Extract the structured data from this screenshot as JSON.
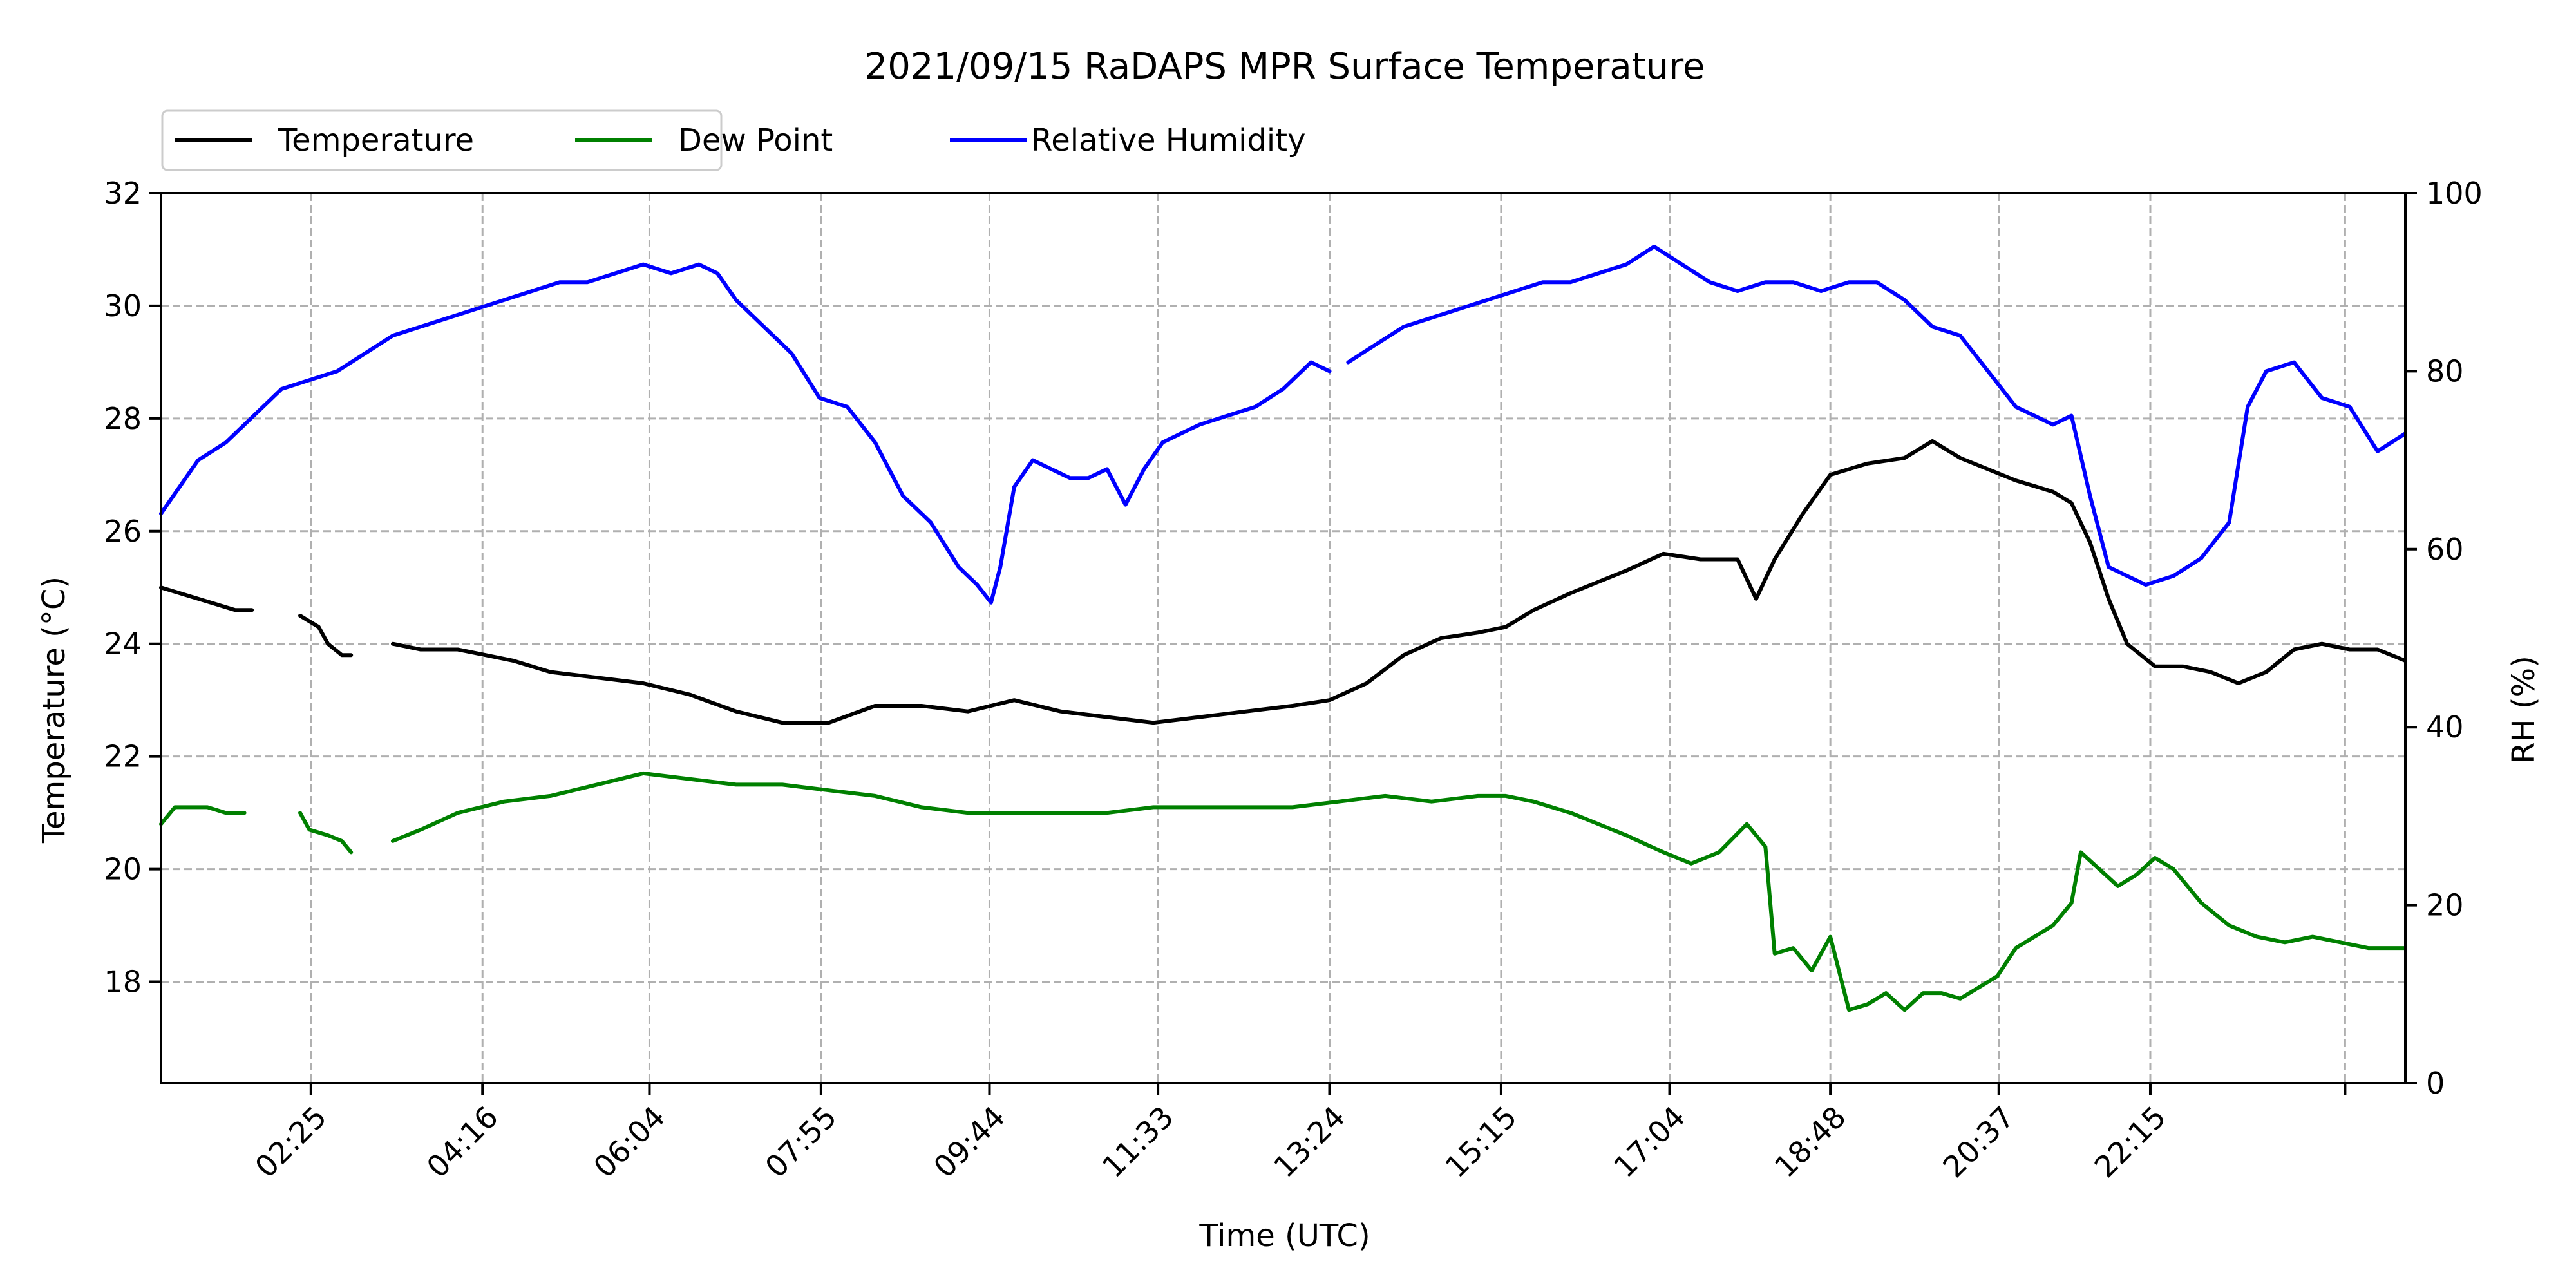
{
  "chart_data": {
    "type": "line",
    "title": "2021/09/15 RaDAPS MPR Surface Temperature",
    "xlabel": "Time (UTC)",
    "ylabel": "Temperature ($^\\circ$C)",
    "ylabel_display": "Temperature (°C)",
    "y2label": "RH (%)",
    "ylim": [
      16.2,
      32
    ],
    "y2lim": [
      0,
      100
    ],
    "xlim_hours": [
      0.8,
      25.0
    ],
    "x_ticks": [
      {
        "hour": 2.4167,
        "label": "02:25"
      },
      {
        "hour": 4.2667,
        "label": "04:16"
      },
      {
        "hour": 6.0667,
        "label": "06:04"
      },
      {
        "hour": 7.9167,
        "label": "07:55"
      },
      {
        "hour": 9.7333,
        "label": "09:44"
      },
      {
        "hour": 11.55,
        "label": "11:33"
      },
      {
        "hour": 13.4,
        "label": "13:24"
      },
      {
        "hour": 15.25,
        "label": "15:15"
      },
      {
        "hour": 17.0667,
        "label": "17:04"
      },
      {
        "hour": 18.8,
        "label": "18:48"
      },
      {
        "hour": 20.6167,
        "label": "20:37"
      },
      {
        "hour": 22.25,
        "label": "22:15"
      },
      {
        "hour": 24.35,
        "label": ""
      }
    ],
    "y_ticks": [
      18,
      20,
      22,
      24,
      26,
      28,
      30,
      32
    ],
    "y2_ticks": [
      0,
      20,
      40,
      60,
      80,
      100
    ],
    "grid": true,
    "legend_position": "top-left",
    "series": [
      {
        "name": "Temperature",
        "axis": "left",
        "color": "#000000",
        "segments": [
          {
            "x": [
              0.8,
              1.0,
              1.2,
              1.4,
              1.6,
              1.78
            ],
            "y": [
              25.0,
              24.9,
              24.8,
              24.7,
              24.6,
              24.6
            ]
          },
          {
            "x": [
              2.3,
              2.5,
              2.6,
              2.75,
              2.85
            ],
            "y": [
              24.5,
              24.3,
              24.0,
              23.8,
              23.8
            ]
          },
          {
            "x": [
              3.3,
              3.6,
              4.0,
              4.3,
              4.6,
              5.0,
              5.5,
              6.0,
              6.5,
              7.0,
              7.5,
              8.0,
              8.5,
              9.0,
              9.5,
              10.0,
              10.5,
              11.0,
              11.5,
              12.0,
              12.5,
              13.0,
              13.4,
              13.8,
              14.2,
              14.6,
              15.0,
              15.3,
              15.6,
              16.0,
              16.3,
              16.6,
              17.0,
              17.4,
              17.8,
              18.0,
              18.2,
              18.5,
              18.8,
              19.2,
              19.6,
              19.9,
              20.2,
              20.5,
              20.8,
              21.0,
              21.2,
              21.4,
              21.6,
              21.8,
              22.0,
              22.3,
              22.6,
              22.9,
              23.2,
              23.5,
              23.8,
              24.1,
              24.4,
              24.7,
              25.0
            ],
            "y": [
              24.0,
              23.9,
              23.9,
              23.8,
              23.7,
              23.5,
              23.4,
              23.3,
              23.1,
              22.8,
              22.6,
              22.6,
              22.9,
              22.9,
              22.8,
              23.0,
              22.8,
              22.7,
              22.6,
              22.7,
              22.8,
              22.9,
              23.0,
              23.3,
              23.8,
              24.1,
              24.2,
              24.3,
              24.6,
              24.9,
              25.1,
              25.3,
              25.6,
              25.5,
              25.5,
              24.8,
              25.5,
              26.3,
              27.0,
              27.2,
              27.3,
              27.6,
              27.3,
              27.1,
              26.9,
              26.8,
              26.7,
              26.5,
              25.8,
              24.8,
              24.0,
              23.6,
              23.6,
              23.5,
              23.3,
              23.5,
              23.9,
              24.0,
              23.9,
              23.9,
              23.7
            ]
          }
        ]
      },
      {
        "name": "Dew Point",
        "axis": "left",
        "color": "#008000",
        "segments": [
          {
            "x": [
              0.8,
              0.95,
              1.1,
              1.3,
              1.5,
              1.7
            ],
            "y": [
              20.8,
              21.1,
              21.1,
              21.1,
              21.0,
              21.0
            ]
          },
          {
            "x": [
              2.3,
              2.4,
              2.6,
              2.75,
              2.85
            ],
            "y": [
              21.0,
              20.7,
              20.6,
              20.5,
              20.3
            ]
          },
          {
            "x": [
              3.3,
              3.6,
              4.0,
              4.5,
              5.0,
              5.5,
              6.0,
              6.5,
              7.0,
              7.5,
              8.0,
              8.5,
              9.0,
              9.5,
              10.0,
              10.5,
              11.0,
              11.5,
              12.0,
              12.5,
              13.0,
              13.5,
              14.0,
              14.5,
              15.0,
              15.3,
              15.6,
              16.0,
              16.3,
              16.6,
              17.0,
              17.3,
              17.6,
              17.9,
              18.1,
              18.2,
              18.4,
              18.6,
              18.8,
              19.0,
              19.2,
              19.4,
              19.6,
              19.8,
              20.0,
              20.2,
              20.4,
              20.6,
              20.8,
              21.0,
              21.2,
              21.4,
              21.5,
              21.7,
              21.9,
              22.1,
              22.3,
              22.5,
              22.8,
              23.1,
              23.4,
              23.7,
              24.0,
              24.3,
              24.6,
              25.0
            ],
            "y": [
              20.5,
              20.7,
              21.0,
              21.2,
              21.3,
              21.5,
              21.7,
              21.6,
              21.5,
              21.5,
              21.4,
              21.3,
              21.1,
              21.0,
              21.0,
              21.0,
              21.0,
              21.1,
              21.1,
              21.1,
              21.1,
              21.2,
              21.3,
              21.2,
              21.3,
              21.3,
              21.2,
              21.0,
              20.8,
              20.6,
              20.3,
              20.1,
              20.3,
              20.8,
              20.4,
              18.5,
              18.6,
              18.2,
              18.8,
              17.5,
              17.6,
              17.8,
              17.5,
              17.8,
              17.8,
              17.7,
              17.9,
              18.1,
              18.6,
              18.8,
              19.0,
              19.4,
              20.3,
              20.0,
              19.7,
              19.9,
              20.2,
              20.0,
              19.4,
              19.0,
              18.8,
              18.7,
              18.8,
              18.7,
              18.6,
              18.6
            ]
          }
        ]
      },
      {
        "name": "Relative Humidity",
        "axis": "right",
        "color": "#0000ff",
        "segments": [
          {
            "x": [
              0.8,
              1.0,
              1.2,
              1.5,
              1.8,
              2.1,
              2.4,
              2.7,
              3.0,
              3.3,
              3.6,
              3.9,
              4.2,
              4.5,
              4.8,
              5.1,
              5.4,
              5.7,
              6.0,
              6.3,
              6.6,
              6.8,
              7.0,
              7.3,
              7.6,
              7.9,
              8.2,
              8.5,
              8.8,
              9.1,
              9.4,
              9.6,
              9.75,
              9.85,
              10.0,
              10.2,
              10.4,
              10.6,
              10.8,
              11.0,
              11.2,
              11.4,
              11.6,
              11.8,
              12.0,
              12.3,
              12.6,
              12.9,
              13.2,
              13.4
            ],
            "y": [
              64,
              67,
              70,
              72,
              75,
              78,
              79,
              80,
              82,
              84,
              85,
              86,
              87,
              88,
              89,
              90,
              90,
              91,
              92,
              91,
              92,
              91,
              88,
              85,
              82,
              77,
              76,
              72,
              66,
              63,
              58,
              56,
              54,
              58,
              67,
              70,
              69,
              68,
              68,
              69,
              65,
              69,
              72,
              73,
              74,
              75,
              76,
              78,
              81,
              80
            ]
          },
          {
            "x": [
              13.6,
              13.9,
              14.2,
              14.5,
              14.8,
              15.1,
              15.4,
              15.7,
              16.0,
              16.3,
              16.6,
              16.9,
              17.2,
              17.5,
              17.8,
              18.1,
              18.4,
              18.7,
              19.0,
              19.3,
              19.6,
              19.9,
              20.2,
              20.5,
              20.8,
              21.0,
              21.2,
              21.4,
              21.6,
              21.8,
              22.0,
              22.2,
              22.5,
              22.8,
              23.1,
              23.3,
              23.5,
              23.8,
              24.1,
              24.4,
              24.7,
              25.0
            ],
            "y": [
              81,
              83,
              85,
              86,
              87,
              88,
              89,
              90,
              90,
              91,
              92,
              94,
              92,
              90,
              89,
              90,
              90,
              89,
              90,
              90,
              88,
              85,
              84,
              80,
              76,
              75,
              74,
              75,
              66,
              58,
              57,
              56,
              57,
              59,
              63,
              76,
              80,
              81,
              77,
              76,
              71,
              73
            ]
          }
        ]
      }
    ]
  }
}
